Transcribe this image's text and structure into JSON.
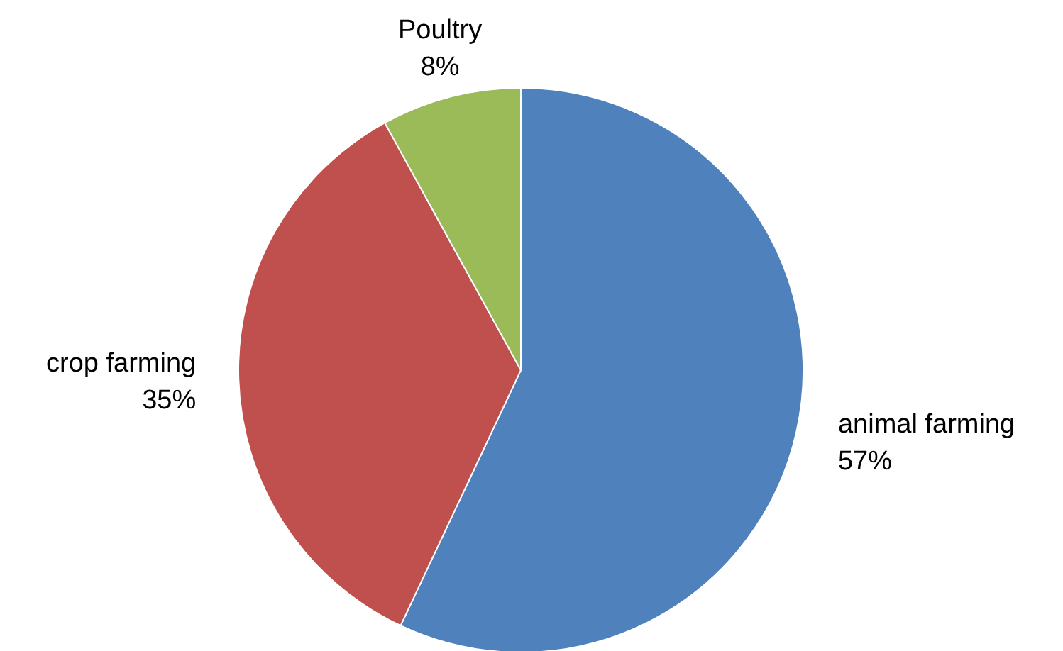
{
  "chart_data": {
    "type": "pie",
    "categories": [
      "animal farming",
      "crop farming",
      "Poultry"
    ],
    "values": [
      57,
      35,
      8
    ],
    "colors": [
      "#4f81bd",
      "#c0504d",
      "#9bbb59"
    ],
    "value_labels": [
      "57%",
      "35%",
      "8%"
    ]
  }
}
